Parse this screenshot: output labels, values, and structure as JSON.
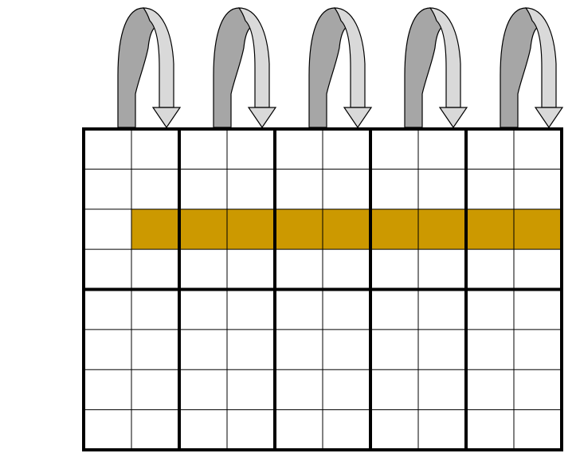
{
  "grid": {
    "columns": 10,
    "rows": 8,
    "block_columns": 2,
    "block_rows": 4,
    "highlight": {
      "row": 3,
      "start_column": 2,
      "end_column": 10,
      "color": "#CC9900"
    },
    "line_color": "#000000",
    "cell_fill": "#FFFFFF"
  },
  "arrows": {
    "count": 5,
    "shape": "curved-u-turn-arrow",
    "left_side_color": "#A6A6A6",
    "right_side_color": "#D9D9D9",
    "outline_color": "#000000"
  }
}
